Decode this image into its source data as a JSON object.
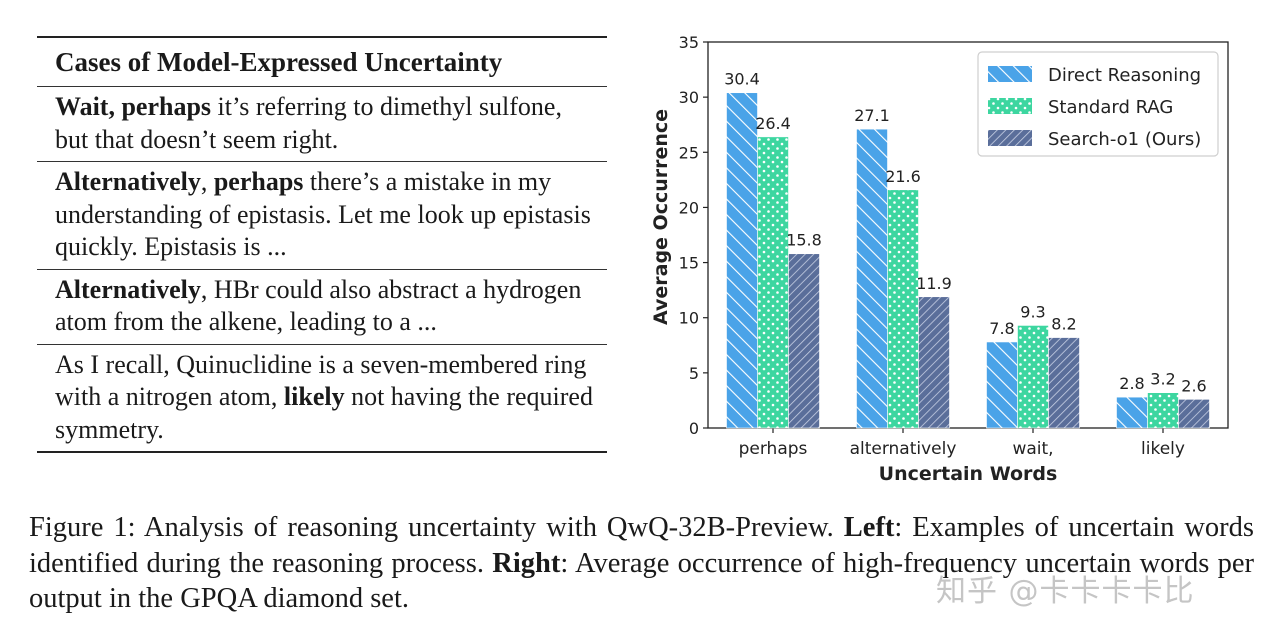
{
  "table": {
    "header": "Cases of Model-Expressed Uncertainty",
    "rows": [
      [
        {
          "t": "Wait, perhaps",
          "b": true
        },
        {
          "t": " it’s referring to dimethyl sulfone, but that doesn’t seem right.",
          "b": false
        }
      ],
      [
        {
          "t": "Alternatively",
          "b": true
        },
        {
          "t": ", ",
          "b": false
        },
        {
          "t": "perhaps",
          "b": true
        },
        {
          "t": " there’s a mistake in my understanding of epistasis. Let me look up epistasis quickly. Epistasis is ...",
          "b": false
        }
      ],
      [
        {
          "t": "Alternatively",
          "b": true
        },
        {
          "t": ", HBr could also abstract a hydrogen atom from the alkene, leading to a ...",
          "b": false
        }
      ],
      [
        {
          "t": "As I recall, Quinuclidine is a seven-membered ring with a nitrogen atom, ",
          "b": false
        },
        {
          "t": "likely",
          "b": true
        },
        {
          "t": " not having the required symmetry.",
          "b": false
        }
      ]
    ]
  },
  "chart_data": {
    "type": "bar",
    "categories": [
      "perhaps",
      "alternatively",
      "wait,",
      "likely"
    ],
    "series": [
      {
        "name": "Direct Reasoning",
        "values": [
          30.4,
          27.1,
          7.8,
          2.8
        ],
        "labels": [
          "30.4",
          "27.1",
          "7.8",
          "2.8"
        ],
        "color": "#4aa3e8",
        "pattern": "diagonal"
      },
      {
        "name": "Standard RAG",
        "values": [
          26.4,
          21.6,
          9.3,
          3.2
        ],
        "labels": [
          "26.4",
          "21.6",
          "9.3",
          "3.2"
        ],
        "color": "#3dd6a0",
        "pattern": "dots"
      },
      {
        "name": "Search-o1 (Ours)",
        "values": [
          15.8,
          11.9,
          8.2,
          2.6
        ],
        "labels": [
          "15.8",
          "11.9",
          "8.2",
          "2.6"
        ],
        "color": "#5a6e9a",
        "pattern": "backdiag"
      }
    ],
    "xlabel": "Uncertain Words",
    "ylabel": "Average Occurrence",
    "ylim": [
      0,
      35
    ],
    "yticks": [
      0,
      5,
      10,
      15,
      20,
      25,
      30,
      35
    ],
    "legend_position": "top-right"
  },
  "caption": [
    {
      "t": "Figure 1: Analysis of reasoning uncertainty with QwQ-32B-Preview. ",
      "b": false
    },
    {
      "t": "Left",
      "b": true
    },
    {
      "t": ": Examples of uncertain words identified during the reasoning process. ",
      "b": false
    },
    {
      "t": "Right",
      "b": true
    },
    {
      "t": ": Average occurrence of high-frequency uncertain words per output in the GPQA diamond set.",
      "b": false
    }
  ],
  "watermark": "知乎 @卡卡卡卡比"
}
